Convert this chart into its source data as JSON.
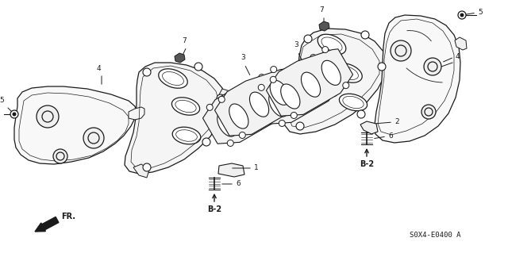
{
  "bg_color": "#ffffff",
  "lc": "#1a1a1a",
  "lw": 0.9,
  "fs": 6.5,
  "part_code": "S0X4-E0400 A",
  "figsize": [
    6.4,
    3.19
  ],
  "dpi": 100
}
